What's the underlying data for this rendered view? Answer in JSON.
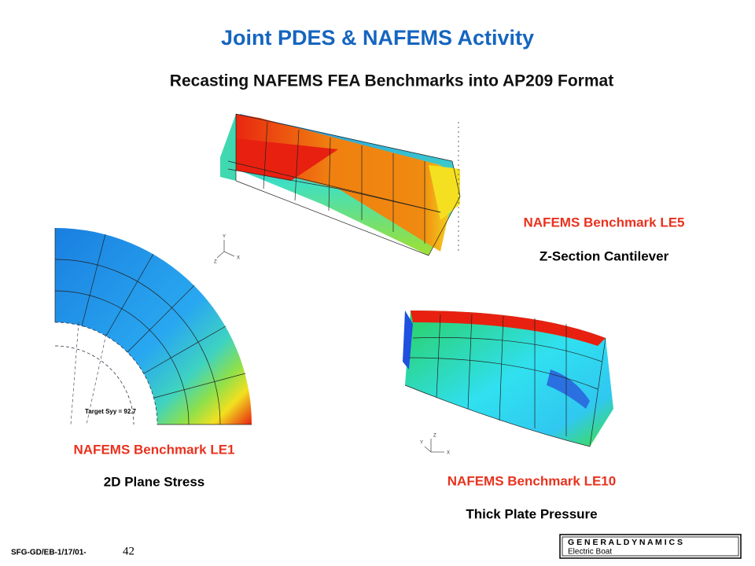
{
  "title": "Joint PDES & NAFEMS Activity",
  "subtitle": "Recasting NAFEMS FEA Benchmarks into AP209 Format",
  "figures": [
    {
      "name": "NAFEMS Benchmark LE5",
      "caption": "Z-Section Cantilever"
    },
    {
      "name": "NAFEMS Benchmark LE1",
      "caption": "2D Plane Stress",
      "annotation": "Target Syy = 92.7"
    },
    {
      "name": "NAFEMS Benchmark LE10",
      "caption": "Thick Plate Pressure"
    }
  ],
  "triads": [
    [
      "Y",
      "Z",
      "X"
    ],
    [
      "Z",
      "Y",
      "X"
    ]
  ],
  "footer": {
    "code": "SFG-GD/EB-1/17/01-",
    "page": "42"
  },
  "logo": {
    "name": "G E N E R A L D Y N A M I C S",
    "division": "Electric Boat"
  }
}
